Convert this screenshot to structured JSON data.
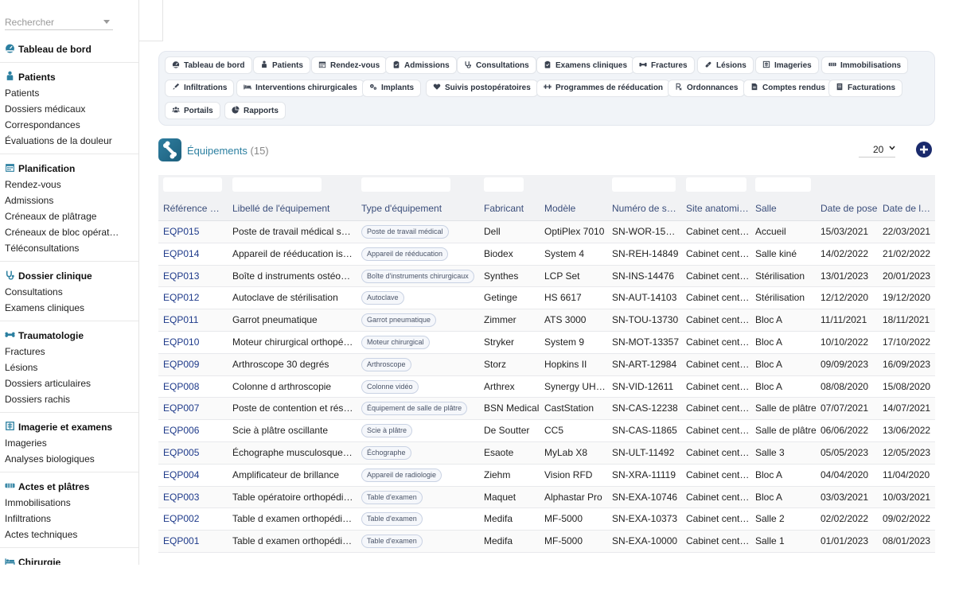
{
  "search": {
    "placeholder": "Rechercher"
  },
  "sidebar": {
    "sections": [
      {
        "title": "Tableau de bord",
        "icon": "dashboard-icon",
        "items": []
      },
      {
        "title": "Patients",
        "icon": "patient-icon",
        "items": [
          "Patients",
          "Dossiers médicaux",
          "Correspondances",
          "Évaluations de la douleur"
        ]
      },
      {
        "title": "Planification",
        "icon": "calendar-icon",
        "items": [
          "Rendez-vous",
          "Admissions",
          "Créneaux de plâtrage",
          "Créneaux de bloc opérat…",
          "Téléconsultations"
        ]
      },
      {
        "title": "Dossier clinique",
        "icon": "stethoscope-icon",
        "items": [
          "Consultations",
          "Examens cliniques"
        ]
      },
      {
        "title": "Traumatologie",
        "icon": "bone-icon",
        "items": [
          "Fractures",
          "Lésions",
          "Dossiers articulaires",
          "Dossiers rachis"
        ]
      },
      {
        "title": "Imagerie et examens",
        "icon": "xray-icon",
        "items": [
          "Imageries",
          "Analyses biologiques"
        ]
      },
      {
        "title": "Actes et plâtres",
        "icon": "cast-icon",
        "items": [
          "Immobilisations",
          "Infiltrations",
          "Actes techniques"
        ]
      },
      {
        "title": "Chirurgie",
        "icon": "surgery-bed-icon",
        "items": []
      }
    ]
  },
  "modules": [
    {
      "label": "Tableau de bord",
      "icon": "dashboard-icon"
    },
    {
      "label": "Patients",
      "icon": "patient-icon"
    },
    {
      "label": "Rendez-vous",
      "icon": "calendar-icon"
    },
    {
      "label": "Admissions",
      "icon": "clipboard-icon"
    },
    {
      "label": "Consultations",
      "icon": "stethoscope-icon"
    },
    {
      "label": "Examens cliniques",
      "icon": "clipboard-icon"
    },
    {
      "label": "Fractures",
      "icon": "bone-icon"
    },
    {
      "label": "Lésions",
      "icon": "bandage-icon"
    },
    {
      "label": "Imageries",
      "icon": "xray-icon"
    },
    {
      "label": "Immobilisations",
      "icon": "cast-icon"
    },
    {
      "label": "Infiltrations",
      "icon": "syringe-icon"
    },
    {
      "label": "Interventions chirurgicales",
      "icon": "surgery-bed-icon"
    },
    {
      "label": "Implants",
      "icon": "gears-icon"
    },
    {
      "label": "Suivis postopératoires",
      "icon": "heart-icon"
    },
    {
      "label": "Programmes de rééducation",
      "icon": "dumbbell-icon"
    },
    {
      "label": "Ordonnances",
      "icon": "prescription-icon"
    },
    {
      "label": "Comptes rendus",
      "icon": "document-icon"
    },
    {
      "label": "Facturations",
      "icon": "invoice-icon"
    },
    {
      "label": "Portails",
      "icon": "users-icon"
    },
    {
      "label": "Rapports",
      "icon": "chart-pie-icon"
    }
  ],
  "list": {
    "title": "Équipements",
    "count": "(15)",
    "page_size": "20",
    "icon": "bone-logo-icon",
    "add_icon": "plus-circle-icon"
  },
  "table": {
    "columns": [
      "Référence d…",
      "Libellé de l'équipement",
      "Type d'équipement",
      "Fabricant",
      "Modèle",
      "Numéro de s…",
      "Site anatomi…",
      "Salle",
      "Date de pose",
      "Date de la pr…"
    ],
    "rows": [
      [
        "EQP015",
        "Poste de travail médical sec…",
        "Poste de travail médical",
        "Dell",
        "OptiPlex 7010",
        "SN-WOR-15222",
        "Cabinet central",
        "Accueil",
        "15/03/2021",
        "22/03/2021"
      ],
      [
        "EQP014",
        "Appareil de rééducation iso…",
        "Appareil de rééducation",
        "Biodex",
        "System 4",
        "SN-REH-14849",
        "Cabinet central",
        "Salle kiné",
        "14/02/2022",
        "21/02/2022"
      ],
      [
        "EQP013",
        "Boîte d instruments ostéosy…",
        "Boîte d'instruments chirurgicaux",
        "Synthes",
        "LCP Set",
        "SN-INS-14476",
        "Cabinet central",
        "Stérilisation",
        "13/01/2023",
        "20/01/2023"
      ],
      [
        "EQP012",
        "Autoclave de stérilisation",
        "Autoclave",
        "Getinge",
        "HS 6617",
        "SN-AUT-14103",
        "Cabinet central",
        "Stérilisation",
        "12/12/2020",
        "19/12/2020"
      ],
      [
        "EQP011",
        "Garrot pneumatique",
        "Garrot pneumatique",
        "Zimmer",
        "ATS 3000",
        "SN-TOU-13730",
        "Cabinet central",
        "Bloc A",
        "11/11/2021",
        "18/11/2021"
      ],
      [
        "EQP010",
        "Moteur chirurgical orthopédi…",
        "Moteur chirurgical",
        "Stryker",
        "System 9",
        "SN-MOT-13357",
        "Cabinet central",
        "Bloc A",
        "10/10/2022",
        "17/10/2022"
      ],
      [
        "EQP009",
        "Arthroscope 30 degrés",
        "Arthroscope",
        "Storz",
        "Hopkins II",
        "SN-ART-12984",
        "Cabinet central",
        "Bloc A",
        "09/09/2023",
        "16/09/2023"
      ],
      [
        "EQP008",
        "Colonne d arthroscopie",
        "Colonne vidéo",
        "Arthrex",
        "Synergy UHD4",
        "SN-VID-12611",
        "Cabinet central",
        "Bloc A",
        "08/08/2020",
        "15/08/2020"
      ],
      [
        "EQP007",
        "Poste de contention et résine",
        "Équipement de salle de plâtre",
        "BSN Medical",
        "CastStation",
        "SN-CAS-12238",
        "Cabinet central",
        "Salle de plâtre",
        "07/07/2021",
        "14/07/2021"
      ],
      [
        "EQP006",
        "Scie à plâtre oscillante",
        "Scie à plâtre",
        "De Soutter",
        "CC5",
        "SN-CAS-11865",
        "Cabinet central",
        "Salle de plâtre",
        "06/06/2022",
        "13/06/2022"
      ],
      [
        "EQP005",
        "Échographe musculosquele…",
        "Échographe",
        "Esaote",
        "MyLab X8",
        "SN-ULT-11492",
        "Cabinet central",
        "Salle 3",
        "05/05/2023",
        "12/05/2023"
      ],
      [
        "EQP004",
        "Amplificateur de brillance",
        "Appareil de radiologie",
        "Ziehm",
        "Vision RFD",
        "SN-XRA-11119",
        "Cabinet central",
        "Bloc A",
        "04/04/2020",
        "11/04/2020"
      ],
      [
        "EQP003",
        "Table opératoire orthopédique",
        "Table d'examen",
        "Maquet",
        "Alphastar Pro",
        "SN-EXA-10746",
        "Cabinet central",
        "Bloc A",
        "03/03/2021",
        "10/03/2021"
      ],
      [
        "EQP002",
        "Table d examen orthopédiq…",
        "Table d'examen",
        "Medifa",
        "MF-5000",
        "SN-EXA-10373",
        "Cabinet central",
        "Salle 2",
        "02/02/2022",
        "09/02/2022"
      ],
      [
        "EQP001",
        "Table d examen orthopédiq…",
        "Table d'examen",
        "Medifa",
        "MF-5000",
        "SN-EXA-10000",
        "Cabinet central",
        "Salle 1",
        "01/01/2023",
        "08/01/2023"
      ]
    ]
  },
  "colors": {
    "accent": "#2b7fa0",
    "link": "#1e3a8a",
    "add_button": "#1a2a6c"
  }
}
